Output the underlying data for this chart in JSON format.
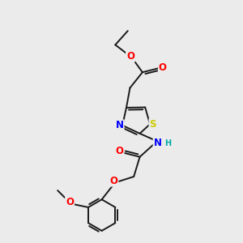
{
  "bg_color": "#ebebeb",
  "atom_colors": {
    "O": "#ff0000",
    "N": "#0000ff",
    "S": "#cccc00",
    "H": "#00aaaa",
    "C": "#1a1a1a"
  },
  "bond_color": "#1a1a1a",
  "bond_lw": 1.4,
  "font_size": 8.5
}
